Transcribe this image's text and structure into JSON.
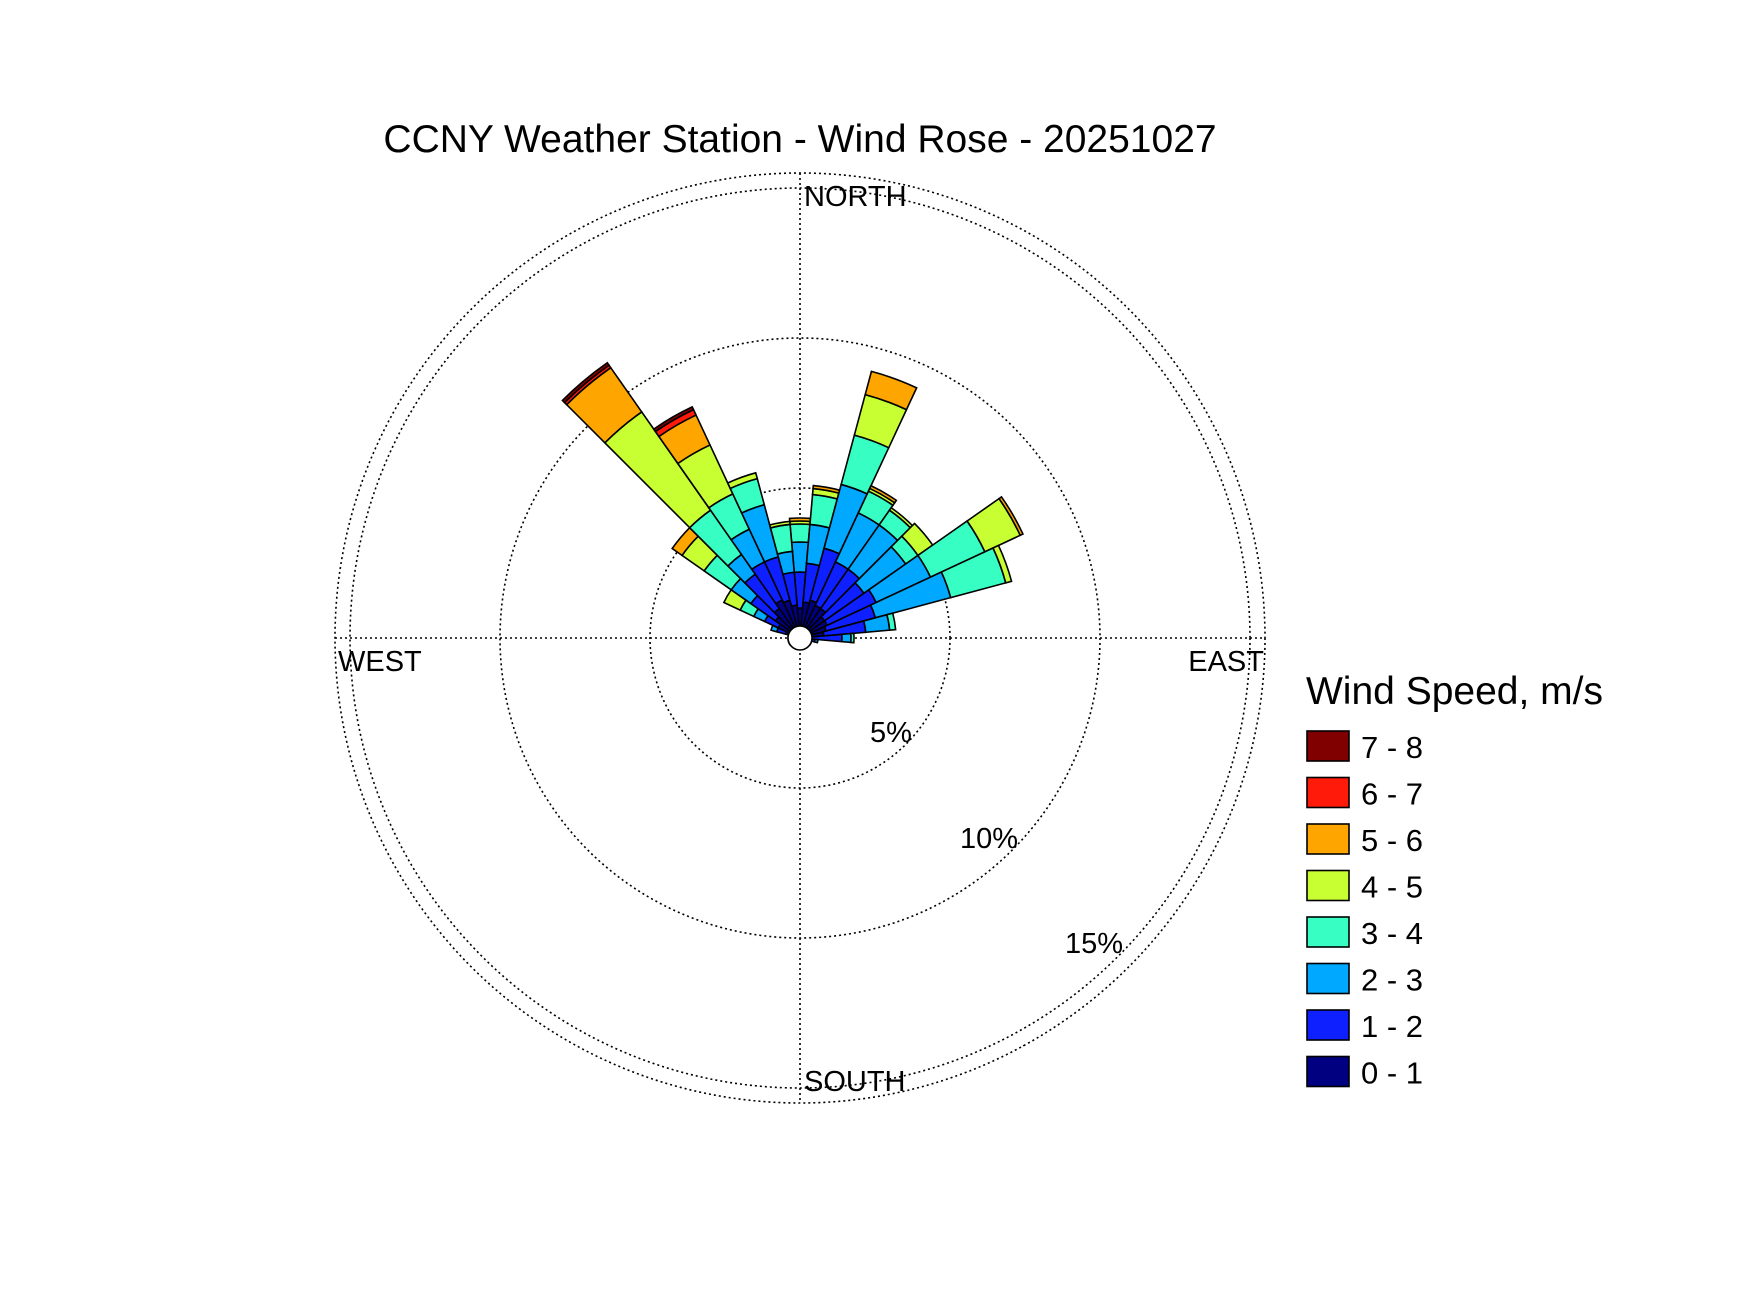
{
  "chart_data": {
    "type": "wind-rose",
    "title": "CCNY Weather Station - Wind Rose - 20251027",
    "direction_labels": {
      "north": "NORTH",
      "east": "EAST",
      "south": "SOUTH",
      "west": "WEST"
    },
    "radial_unit": "%",
    "rings": [
      {
        "value": 5,
        "label": "5%"
      },
      {
        "value": 10,
        "label": "10%"
      },
      {
        "value": 15,
        "label": "15%"
      }
    ],
    "rmax": 15.5,
    "grid": true,
    "legend": {
      "title": "Wind Speed, m/s",
      "position": "right",
      "entries": [
        {
          "label": "7 - 8",
          "color": "#800000"
        },
        {
          "label": "6 - 7",
          "color": "#FF1A0A"
        },
        {
          "label": "5 - 6",
          "color": "#FFA500"
        },
        {
          "label": "4 - 5",
          "color": "#C8FF32"
        },
        {
          "label": "3 - 4",
          "color": "#37FFC4"
        },
        {
          "label": "2 - 3",
          "color": "#00A8FF"
        },
        {
          "label": "1 - 2",
          "color": "#0E20FF"
        },
        {
          "label": "0 - 1",
          "color": "#000080"
        }
      ]
    },
    "speed_bins": [
      "0 - 1",
      "1 - 2",
      "2 - 3",
      "3 - 4",
      "4 - 5",
      "5 - 6",
      "6 - 7",
      "7 - 8"
    ],
    "direction_step_deg": 10,
    "sectors": [
      {
        "direction_deg": 0,
        "cumulative": [
          1.0,
          2.2,
          3.2,
          3.8,
          3.9,
          4.0
        ]
      },
      {
        "direction_deg": 10,
        "cumulative": [
          1.2,
          2.5,
          3.8,
          4.8,
          5.0,
          5.1
        ]
      },
      {
        "direction_deg": 20,
        "cumulative": [
          1.3,
          3.1,
          5.3,
          7.0,
          8.4,
          9.2
        ]
      },
      {
        "direction_deg": 30,
        "cumulative": [
          1.2,
          2.8,
          4.6,
          5.4,
          5.5,
          5.6
        ]
      },
      {
        "direction_deg": 40,
        "cumulative": [
          1.2,
          2.8,
          4.6,
          5.2,
          5.3
        ]
      },
      {
        "direction_deg": 50,
        "cumulative": [
          1.0,
          2.6,
          4.3,
          4.8,
          5.4
        ]
      },
      {
        "direction_deg": 60,
        "cumulative": [
          1.0,
          2.8,
          4.8,
          6.8,
          8.1,
          8.2
        ]
      },
      {
        "direction_deg": 70,
        "cumulative": [
          0.9,
          2.6,
          5.2,
          7.1,
          7.3
        ]
      },
      {
        "direction_deg": 80,
        "cumulative": [
          0.8,
          2.2,
          3.0,
          3.2
        ]
      },
      {
        "direction_deg": 90,
        "cumulative": [
          0.4,
          1.4,
          1.7,
          1.8
        ]
      },
      {
        "direction_deg": 100,
        "cumulative": [
          0.3,
          0.5,
          0.6
        ]
      },
      {
        "direction_deg": 110,
        "cumulative": [
          0.2,
          0.3
        ]
      },
      {
        "direction_deg": 120,
        "cumulative": [
          0.25,
          0.4
        ]
      },
      {
        "direction_deg": 130,
        "cumulative": [
          0.2,
          0.3
        ]
      },
      {
        "direction_deg": 140,
        "cumulative": [
          0.2,
          0.3
        ]
      },
      {
        "direction_deg": 150,
        "cumulative": [
          0.2,
          0.25
        ]
      },
      {
        "direction_deg": 160,
        "cumulative": [
          0.2
        ]
      },
      {
        "direction_deg": 170,
        "cumulative": [
          0.2
        ]
      },
      {
        "direction_deg": 180,
        "cumulative": [
          0.2
        ]
      },
      {
        "direction_deg": 190,
        "cumulative": [
          0.2
        ]
      },
      {
        "direction_deg": 200,
        "cumulative": [
          0.2
        ]
      },
      {
        "direction_deg": 210,
        "cumulative": [
          0.2
        ]
      },
      {
        "direction_deg": 220,
        "cumulative": [
          0.2,
          0.3
        ]
      },
      {
        "direction_deg": 230,
        "cumulative": [
          0.2,
          0.3
        ]
      },
      {
        "direction_deg": 240,
        "cumulative": [
          0.3,
          0.4
        ]
      },
      {
        "direction_deg": 250,
        "cumulative": [
          0.3,
          0.4
        ]
      },
      {
        "direction_deg": 260,
        "cumulative": [
          0.3,
          0.4
        ]
      },
      {
        "direction_deg": 270,
        "cumulative": [
          0.2,
          0.3
        ]
      },
      {
        "direction_deg": 280,
        "cumulative": [
          0.3,
          0.4
        ]
      },
      {
        "direction_deg": 290,
        "cumulative": [
          0.5,
          0.8,
          1.0
        ]
      },
      {
        "direction_deg": 300,
        "cumulative": [
          0.8,
          1.3,
          1.7,
          2.2,
          2.8
        ]
      },
      {
        "direction_deg": 310,
        "cumulative": [
          1.0,
          2.0,
          2.8,
          3.9,
          4.8,
          5.2
        ]
      },
      {
        "direction_deg": 320,
        "cumulative": [
          1.2,
          2.6,
          3.4,
          5.2,
          9.2,
          11.0,
          11.1,
          11.2
        ]
      },
      {
        "direction_deg": 330,
        "cumulative": [
          1.4,
          2.8,
          4.0,
          5.3,
          7.1,
          8.2,
          8.4,
          8.5
        ]
      },
      {
        "direction_deg": 340,
        "cumulative": [
          1.3,
          2.8,
          4.6,
          5.5,
          5.7
        ]
      },
      {
        "direction_deg": 350,
        "cumulative": [
          1.1,
          2.2,
          2.9,
          3.8,
          3.9
        ]
      }
    ]
  }
}
